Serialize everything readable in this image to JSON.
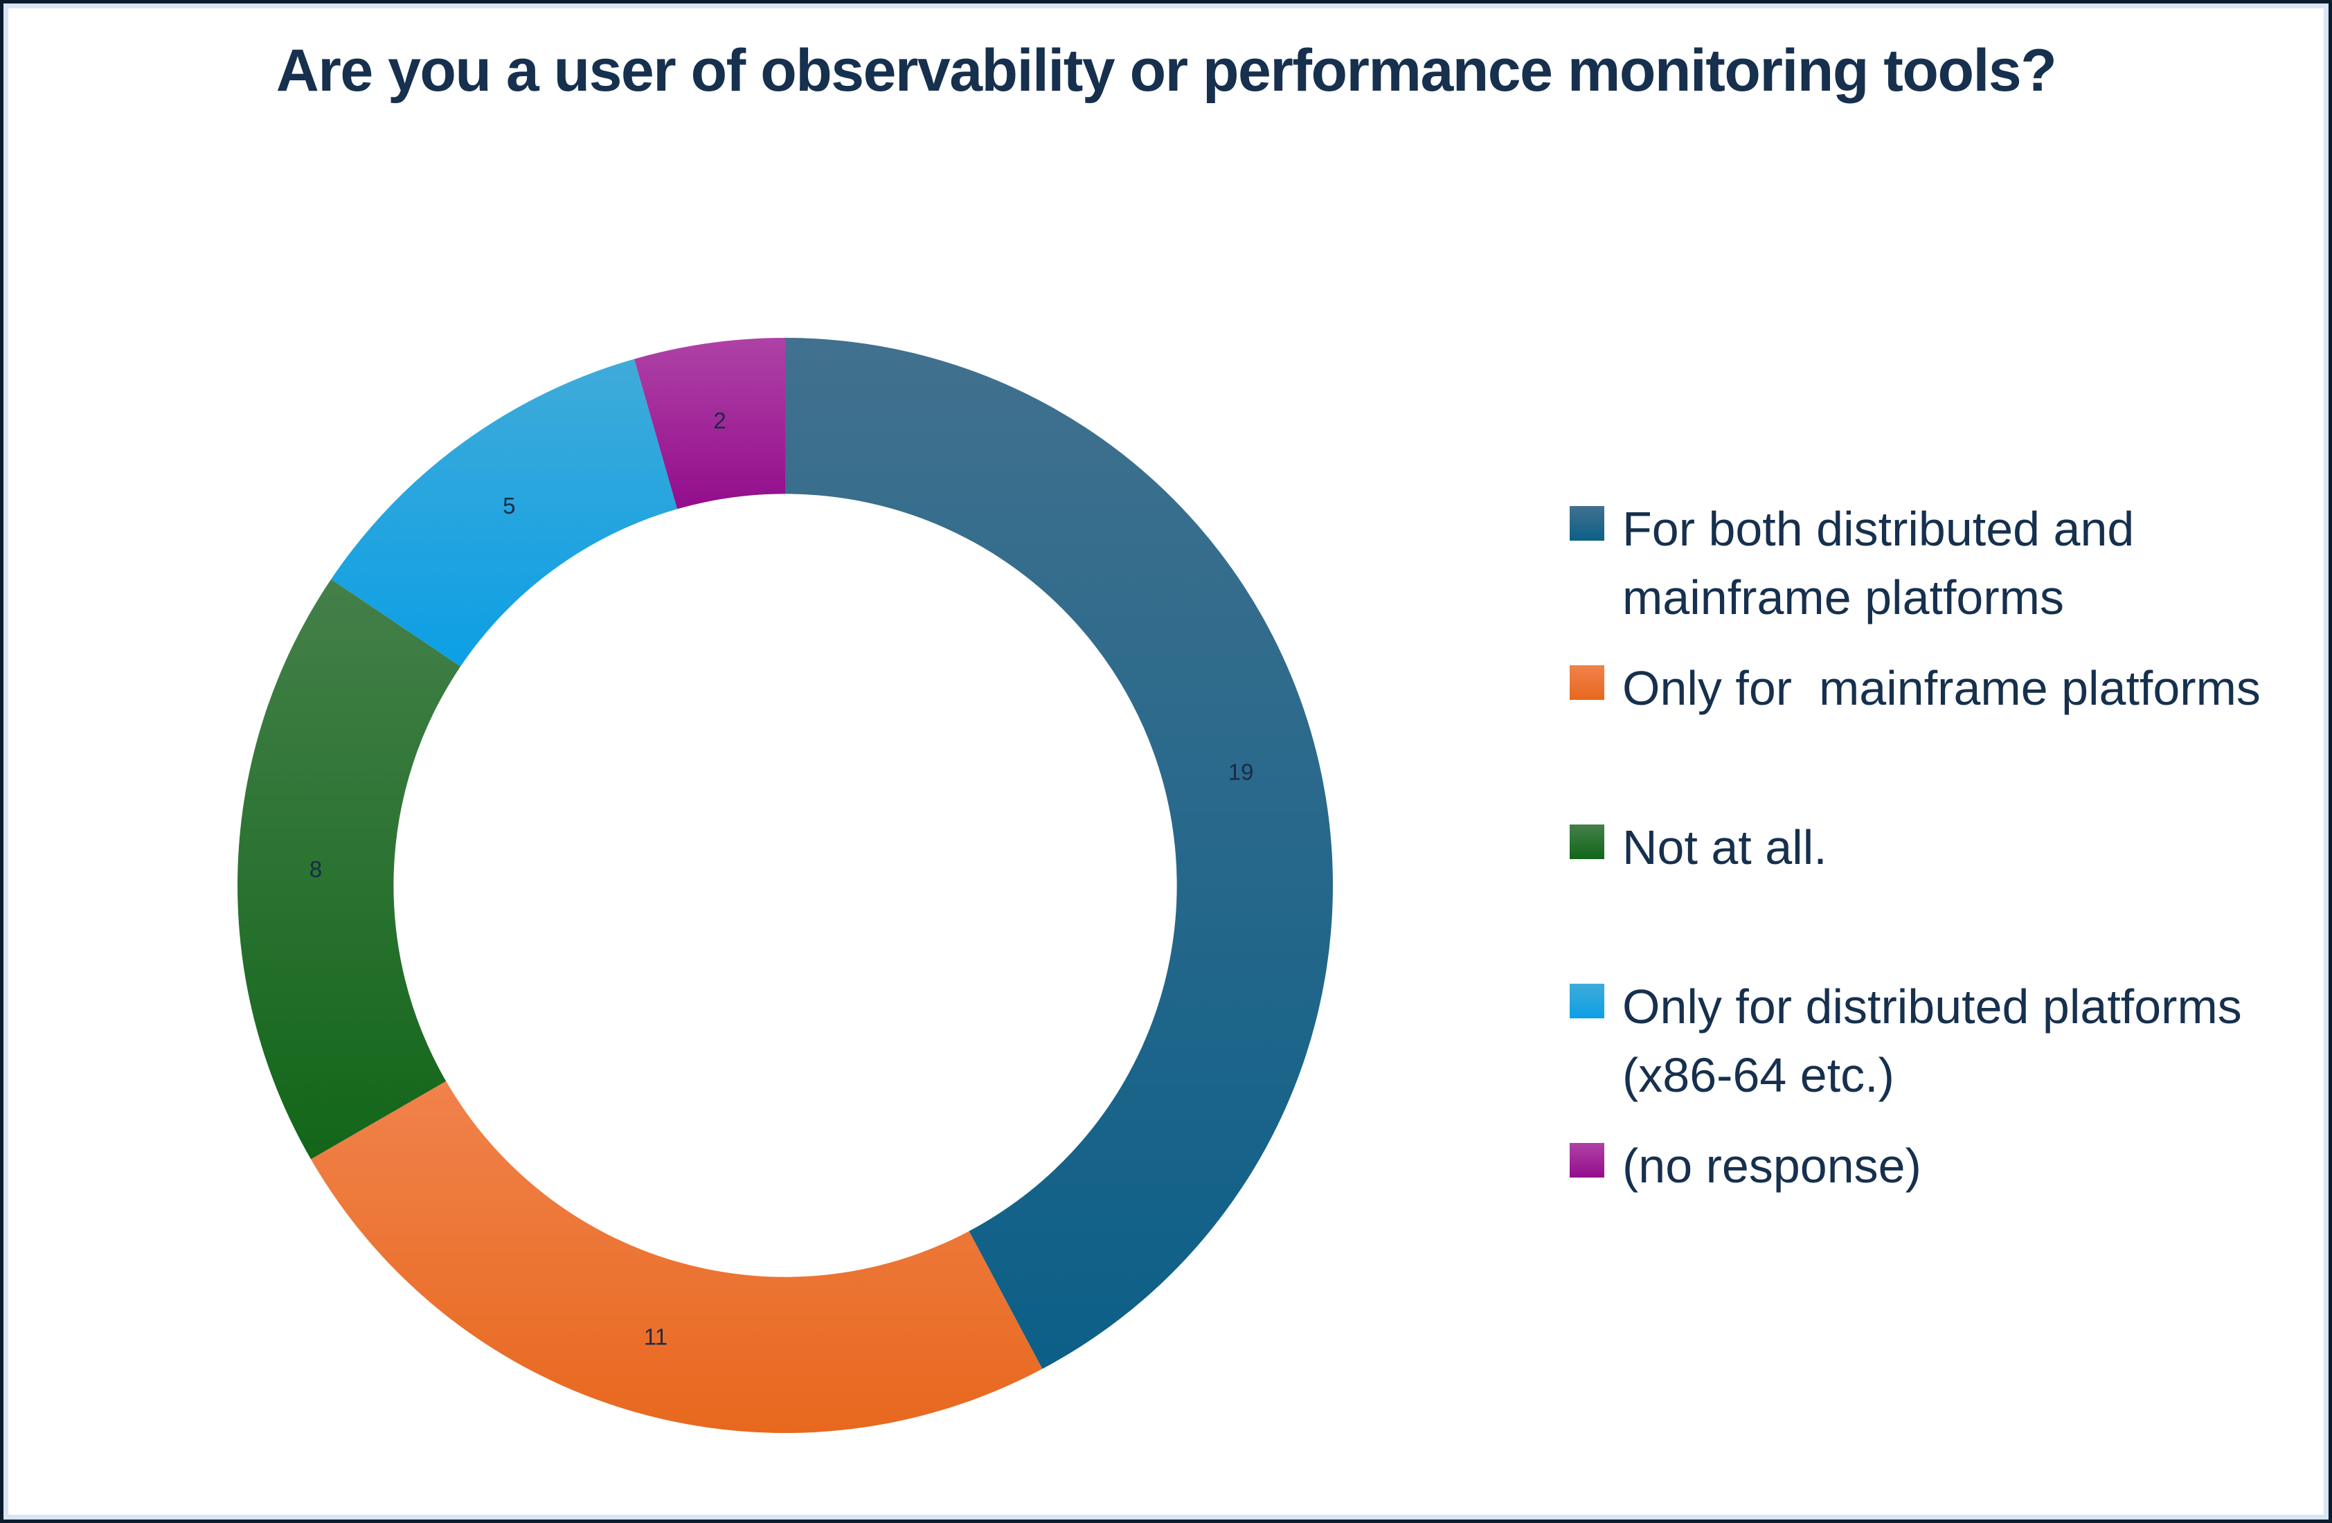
{
  "page": {
    "background": "#FFFFFF",
    "border_outer_color": "#0A1C2E",
    "border_inner_color": "#D8E5F4"
  },
  "title": "Are you a user of observability or performance monitoring tools?",
  "chart_data": {
    "type": "pie",
    "subtype": "donut",
    "title": "Are you a user of observability or performance monitoring tools?",
    "categories": [
      "For both distributed and mainframe platforms",
      "Only for  mainframe platforms",
      "Not at all.",
      "Only for distributed platforms (x86-64 etc.)",
      "(no response)"
    ],
    "values": [
      19,
      11,
      8,
      5,
      2
    ],
    "slice_names": [
      "both-platforms",
      "mainframe-only",
      "not-at-all",
      "distributed-only",
      "no-response"
    ],
    "colors": [
      "#20688C",
      "#EC7228",
      "#1D7024",
      "#18A2DE",
      "#A21C9A"
    ],
    "slice_gradients": [
      [
        "#41718E",
        "#0C5F88"
      ],
      [
        "#F0824B",
        "#E8681E"
      ],
      [
        "#44804A",
        "#126619"
      ],
      [
        "#3FABD9",
        "#0C9FE5"
      ],
      [
        "#AF42A6",
        "#930D8C"
      ]
    ],
    "data_labels": [
      19,
      11,
      8,
      5,
      2
    ],
    "data_label_color": "#1A2B45",
    "text_color": "#16304E",
    "start_angle_deg": 0,
    "direction": "clockwise",
    "inner_radius_ratio": 0.715,
    "legend_position": "right",
    "grid": false
  }
}
